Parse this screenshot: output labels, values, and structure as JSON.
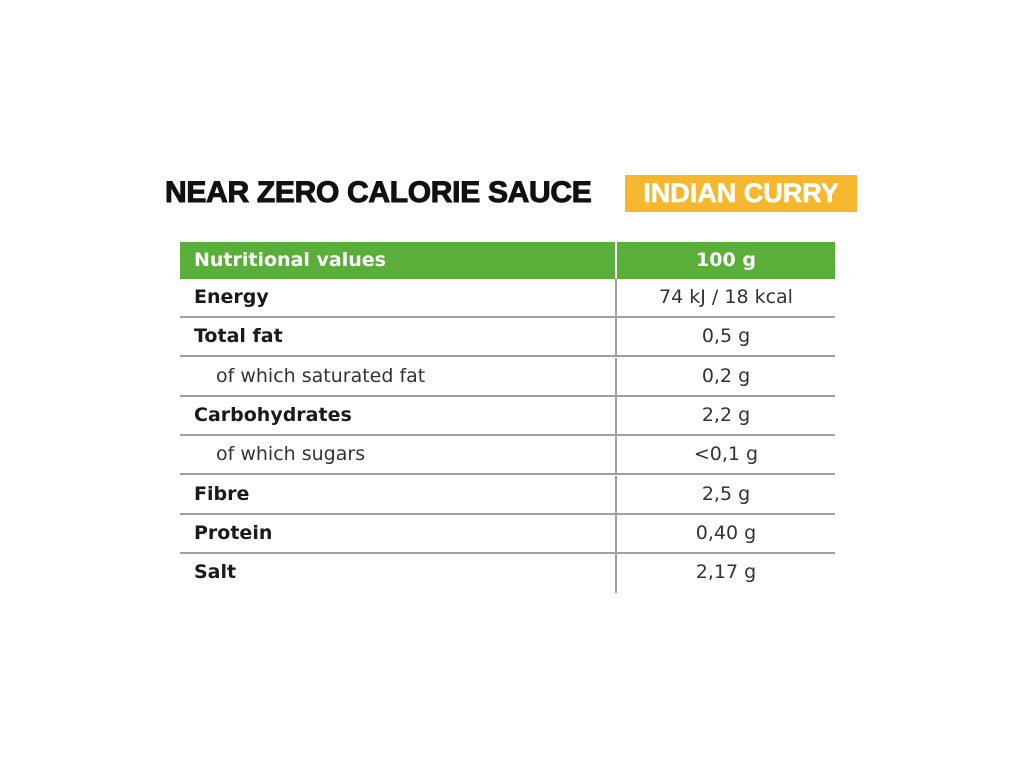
{
  "title": {
    "main": "NEAR ZERO CALORIE SAUCE",
    "flavour": "INDIAN CURRY"
  },
  "table": {
    "header": [
      "Nutritional values",
      "100 g"
    ],
    "rows": [
      {
        "label": "Energy",
        "value": "74 kJ / 18 kcal"
      },
      {
        "label": "Total fat",
        "value": "0,5 g",
        "sub_rows": [
          {
            "label": "of which saturated fat",
            "value": "0,2 g"
          }
        ]
      },
      {
        "label": "Carbohydrates",
        "value": "2,2 g",
        "sub_rows": [
          {
            "label": "of which sugars",
            "value": "<0,1 g"
          }
        ]
      },
      {
        "label": "Fibre",
        "value": "2,5 g"
      },
      {
        "label": "Protein",
        "value": "0,40 g"
      },
      {
        "label": "Salt",
        "value": "2,17 g"
      }
    ]
  }
}
